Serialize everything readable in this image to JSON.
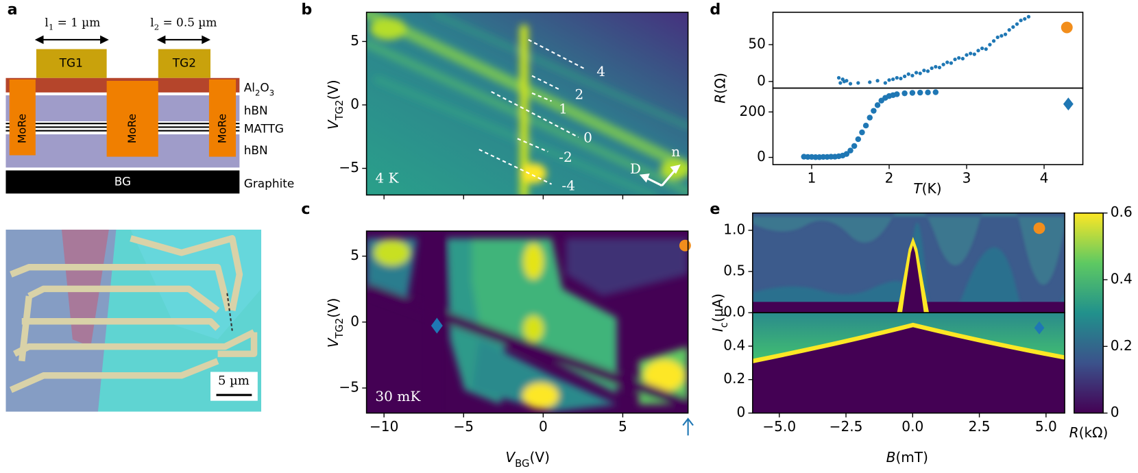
{
  "panel_a": {
    "letter": "a",
    "l1": {
      "sym": "l",
      "sub": "1",
      "rest": " = 1 µm"
    },
    "l2": {
      "sym": "l",
      "sub": "2",
      "rest": " = 0.5 µm"
    },
    "gates": [
      "TG1",
      "TG2"
    ],
    "contacts": [
      "MoRe",
      "MoRe",
      "MoRe"
    ],
    "layers": {
      "al2o3": [
        "Al",
        "2",
        "O",
        "3"
      ],
      "hbn_top": "hBN",
      "mattg": "MATTG",
      "hbn_bottom": "hBN",
      "graphite": "Graphite"
    },
    "bg": "BG",
    "scale_bar": "5 µm"
  },
  "panel_b": {
    "letter": "b",
    "ylabel": {
      "sym": "V",
      "sub": "TG2",
      "unit": "(V)"
    },
    "xlim": [
      -11.1,
      9.1
    ],
    "ylim": [
      -7.1,
      7.3
    ],
    "xticks": [
      -10,
      -5,
      0,
      5
    ],
    "yticks": [
      {
        "value": -5,
        "label": "−5"
      },
      0,
      5
    ],
    "temperature": "4 K",
    "filling_labels": [
      "4",
      "2",
      "1",
      "0",
      "-2",
      "-4"
    ],
    "arrows": [
      "D",
      "n"
    ]
  },
  "panel_c": {
    "letter": "c",
    "ylabel": {
      "sym": "V",
      "sub": "TG2",
      "unit": "(V)"
    },
    "xlabel": {
      "sym": "V",
      "sub": "BG",
      "unit": "(V)"
    },
    "xlim": [
      -11.1,
      9.1
    ],
    "ylim": [
      -6.9,
      6.9
    ],
    "xticks": [
      {
        "value": -10,
        "label": "−10"
      },
      {
        "value": -5,
        "label": "−5"
      },
      0,
      5
    ],
    "yticks": [
      {
        "value": -5,
        "label": "−5"
      },
      0,
      5
    ],
    "temperature": "30 mK"
  },
  "panel_d": {
    "letter": "d",
    "xlim": [
      0.5,
      4.5
    ],
    "xticks": [
      1,
      2,
      3,
      4
    ],
    "xlabel": {
      "sym": "T",
      "unit": "(K)"
    },
    "ylabel": {
      "sym": "R",
      "unit": "(Ω)"
    },
    "top": {
      "ylim": [
        -9,
        94
      ],
      "yticks": [
        0,
        50
      ],
      "x": [
        1.35,
        1.37,
        1.4,
        1.42,
        1.45,
        1.5,
        1.6,
        1.75,
        1.85,
        1.95,
        2.0,
        2.05,
        2.1,
        2.15,
        2.2,
        2.25,
        2.3,
        2.35,
        2.4,
        2.45,
        2.5,
        2.55,
        2.6,
        2.65,
        2.7,
        2.75,
        2.8,
        2.85,
        2.9,
        2.95,
        3.0,
        3.05,
        3.1,
        3.15,
        3.2,
        3.25,
        3.3,
        3.35,
        3.4,
        3.45,
        3.5,
        3.55,
        3.6,
        3.65,
        3.7,
        3.75,
        3.8
      ],
      "y": [
        5,
        -2,
        3,
        0,
        1,
        -3,
        -2,
        -1,
        1,
        -2,
        2,
        3,
        5,
        4,
        7,
        10,
        8,
        12,
        11,
        15,
        14,
        18,
        20,
        19,
        23,
        26,
        25,
        30,
        32,
        31,
        36,
        38,
        37,
        42,
        45,
        44,
        50,
        55,
        60,
        62,
        64,
        70,
        74,
        78,
        83,
        85,
        88
      ]
    },
    "bottom": {
      "ylim": [
        -32,
        305
      ],
      "yticks": [
        0,
        200
      ],
      "x": [
        0.9,
        0.95,
        1.0,
        1.05,
        1.1,
        1.15,
        1.2,
        1.25,
        1.3,
        1.35,
        1.4,
        1.45,
        1.5,
        1.55,
        1.6,
        1.65,
        1.7,
        1.75,
        1.8,
        1.85,
        1.9,
        1.95,
        2.0,
        2.05,
        2.1,
        2.2,
        2.3,
        2.4,
        2.5,
        2.6
      ],
      "y": [
        3,
        2,
        2,
        1,
        1,
        2,
        2,
        3,
        3,
        5,
        8,
        15,
        30,
        50,
        80,
        110,
        140,
        175,
        205,
        230,
        250,
        262,
        270,
        274,
        278,
        282,
        284,
        285,
        286,
        287
      ]
    }
  },
  "panel_e": {
    "letter": "e",
    "xlim": [
      -6.0,
      5.7
    ],
    "xticks": [
      {
        "value": -5,
        "label": "−5.0"
      },
      {
        "value": -2.5,
        "label": "−2.5"
      },
      {
        "value": 0,
        "label": "0.0"
      },
      2.5,
      {
        "value": 5,
        "label": "5.0"
      }
    ],
    "xlabel": {
      "sym": "B",
      "unit": "(mT)"
    },
    "ylabel": {
      "sym": "I",
      "sub": "c",
      "unit": "(µA)"
    },
    "top": {
      "ylim": [
        0,
        1.21
      ],
      "yticks": [
        {
          "value": 0,
          "label": "0.0"
        },
        0.5,
        {
          "value": 1,
          "label": "1.0"
        }
      ]
    },
    "bottom": {
      "ylim": [
        0,
        0.6
      ],
      "yticks": [
        0,
        0.2,
        0.4
      ]
    },
    "colorbar": {
      "lim": [
        0,
        0.6
      ],
      "ticks": [
        0,
        0.2,
        0.4,
        0.6
      ],
      "label": {
        "sym": "R",
        "unit": "(kΩ)"
      }
    }
  }
}
